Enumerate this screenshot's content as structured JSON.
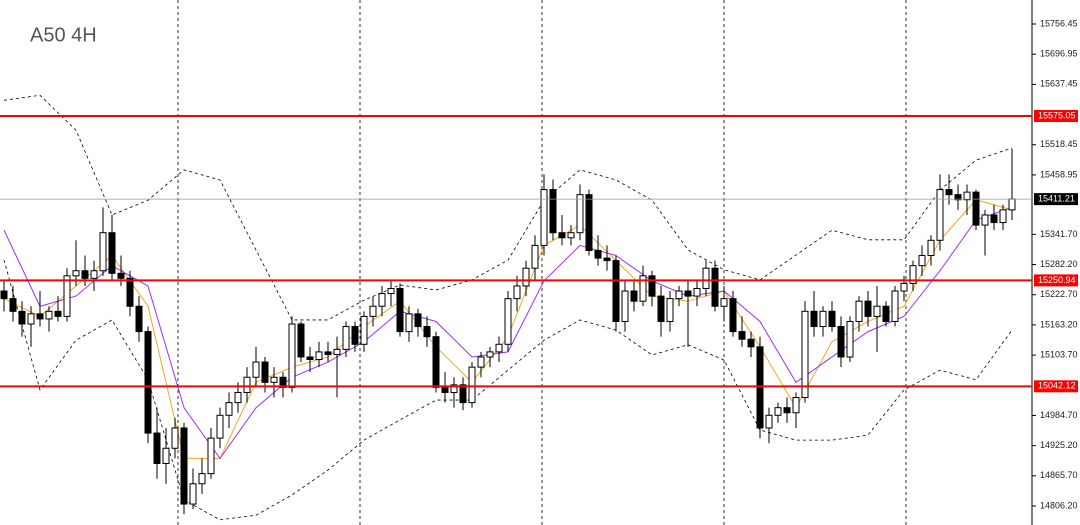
{
  "chart_data": {
    "type": "candlestick",
    "title": "A50 4H",
    "ylim": [
      14768.7,
      15803.8
    ],
    "yticks": [
      15756.45,
      15696.95,
      15637.45,
      15518.45,
      15458.95,
      {
        "value": 15341.7,
        "label": "15341.70"
      },
      {
        "value": 15282.2,
        "label": "15282.20"
      },
      {
        "value": 15222.7,
        "label": "15222.70"
      },
      {
        "value": 15163.2,
        "label": "15163.20"
      },
      {
        "value": 15103.7,
        "label": "15103.70"
      },
      {
        "value": 14984.7,
        "label": "14984.70"
      },
      {
        "value": 14925.2,
        "label": "14925.20"
      },
      {
        "value": 14865.7,
        "label": "14865.70"
      },
      {
        "value": 14806.2,
        "label": "14806.20"
      }
    ],
    "levels": [
      15575.05,
      15250.94,
      15042.12
    ],
    "level_color": "#ff0000",
    "last_price": 15411.21,
    "grid": true,
    "up_color": "#ffffff",
    "down_color": "#000000",
    "ohlc": [
      [
        15230,
        15250,
        15190,
        15215
      ],
      [
        15215,
        15240,
        15170,
        15190
      ],
      [
        15190,
        15210,
        15140,
        15165
      ],
      [
        15165,
        15200,
        15120,
        15185
      ],
      [
        15185,
        15230,
        15160,
        15175
      ],
      [
        15175,
        15200,
        15150,
        15190
      ],
      [
        15190,
        15220,
        15170,
        15180
      ],
      [
        15180,
        15275,
        15170,
        15260
      ],
      [
        15260,
        15330,
        15240,
        15270
      ],
      [
        15270,
        15300,
        15240,
        15255
      ],
      [
        15255,
        15290,
        15230,
        15270
      ],
      [
        15270,
        15395,
        15260,
        15345
      ],
      [
        15345,
        15380,
        15250,
        15265
      ],
      [
        15265,
        15300,
        15240,
        15255
      ],
      [
        15255,
        15270,
        15180,
        15200
      ],
      [
        15200,
        15220,
        15130,
        15150
      ],
      [
        15150,
        15160,
        14930,
        14950
      ],
      [
        14950,
        15000,
        14860,
        14890
      ],
      [
        14890,
        14960,
        14850,
        14920
      ],
      [
        14920,
        14980,
        14900,
        14960
      ],
      [
        14960,
        14970,
        14790,
        14810
      ],
      [
        14810,
        14880,
        14800,
        14850
      ],
      [
        14850,
        14900,
        14830,
        14870
      ],
      [
        14870,
        14960,
        14860,
        14940
      ],
      [
        14940,
        15000,
        14920,
        14985
      ],
      [
        14985,
        15030,
        14960,
        15010
      ],
      [
        15010,
        15050,
        14990,
        15030
      ],
      [
        15030,
        15080,
        15010,
        15060
      ],
      [
        15060,
        15120,
        15040,
        15090
      ],
      [
        15090,
        15100,
        15030,
        15050
      ],
      [
        15050,
        15080,
        15020,
        15060
      ],
      [
        15060,
        15070,
        15020,
        15040
      ],
      [
        15040,
        15180,
        15030,
        15165
      ],
      [
        15165,
        15170,
        15090,
        15100
      ],
      [
        15100,
        15120,
        15070,
        15095
      ],
      [
        15095,
        15130,
        15080,
        15110
      ],
      [
        15110,
        15130,
        15090,
        15105
      ],
      [
        15105,
        15140,
        15020,
        15115
      ],
      [
        15115,
        15170,
        15100,
        15160
      ],
      [
        15160,
        15170,
        15110,
        15125
      ],
      [
        15125,
        15190,
        15110,
        15180
      ],
      [
        15180,
        15220,
        15160,
        15200
      ],
      [
        15200,
        15240,
        15180,
        15225
      ],
      [
        15225,
        15250,
        15200,
        15235
      ],
      [
        15235,
        15245,
        15140,
        15150
      ],
      [
        15150,
        15200,
        15130,
        15185
      ],
      [
        15185,
        15195,
        15140,
        15160
      ],
      [
        15160,
        15180,
        15120,
        15140
      ],
      [
        15140,
        15150,
        15030,
        15040
      ],
      [
        15040,
        15070,
        15010,
        15030
      ],
      [
        15030,
        15060,
        15000,
        15045
      ],
      [
        15045,
        15060,
        14995,
        15010
      ],
      [
        15010,
        15090,
        15000,
        15080
      ],
      [
        15080,
        15110,
        15060,
        15100
      ],
      [
        15100,
        15120,
        15080,
        15110
      ],
      [
        15110,
        15140,
        15090,
        15125
      ],
      [
        15125,
        15230,
        15110,
        15215
      ],
      [
        15215,
        15260,
        15190,
        15240
      ],
      [
        15240,
        15290,
        15220,
        15275
      ],
      [
        15275,
        15340,
        15250,
        15320
      ],
      [
        15320,
        15460,
        15300,
        15430
      ],
      [
        15430,
        15450,
        15330,
        15345
      ],
      [
        15345,
        15380,
        15320,
        15335
      ],
      [
        15335,
        15360,
        15320,
        15345
      ],
      [
        15345,
        15440,
        15330,
        15420
      ],
      [
        15420,
        15430,
        15300,
        15310
      ],
      [
        15310,
        15340,
        15280,
        15295
      ],
      [
        15295,
        15320,
        15270,
        15290
      ],
      [
        15290,
        15300,
        15150,
        15170
      ],
      [
        15170,
        15250,
        15150,
        15230
      ],
      [
        15230,
        15250,
        15190,
        15210
      ],
      [
        15210,
        15280,
        15200,
        15260
      ],
      [
        15260,
        15270,
        15200,
        15220
      ],
      [
        15220,
        15240,
        15140,
        15170
      ],
      [
        15170,
        15230,
        15150,
        15215
      ],
      [
        15215,
        15240,
        15200,
        15230
      ],
      [
        15230,
        15250,
        15120,
        15220
      ],
      [
        15220,
        15250,
        15200,
        15235
      ],
      [
        15235,
        15290,
        15220,
        15275
      ],
      [
        15275,
        15290,
        15190,
        15200
      ],
      [
        15200,
        15240,
        15170,
        15215
      ],
      [
        15215,
        15230,
        15140,
        15150
      ],
      [
        15150,
        15180,
        15120,
        15135
      ],
      [
        15135,
        15150,
        15100,
        15120
      ],
      [
        15120,
        15140,
        14940,
        14960
      ],
      [
        14960,
        15000,
        14930,
        14985
      ],
      [
        14985,
        15010,
        14970,
        15000
      ],
      [
        15000,
        15020,
        14970,
        14990
      ],
      [
        14990,
        15030,
        14960,
        15020
      ],
      [
        15020,
        15210,
        15010,
        15190
      ],
      [
        15190,
        15230,
        15140,
        15160
      ],
      [
        15160,
        15200,
        15140,
        15190
      ],
      [
        15190,
        15210,
        15150,
        15160
      ],
      [
        15160,
        15180,
        15080,
        15100
      ],
      [
        15100,
        15180,
        15090,
        15170
      ],
      [
        15170,
        15220,
        15150,
        15210
      ],
      [
        15210,
        15230,
        15160,
        15180
      ],
      [
        15180,
        15240,
        15110,
        15200
      ],
      [
        15200,
        15210,
        15160,
        15170
      ],
      [
        15170,
        15240,
        15160,
        15230
      ],
      [
        15230,
        15260,
        15210,
        15245
      ],
      [
        15245,
        15290,
        15230,
        15280
      ],
      [
        15280,
        15320,
        15260,
        15300
      ],
      [
        15300,
        15340,
        15280,
        15330
      ],
      [
        15330,
        15460,
        15310,
        15430
      ],
      [
        15430,
        15460,
        15400,
        15420
      ],
      [
        15420,
        15440,
        15390,
        15410
      ],
      [
        15410,
        15440,
        15380,
        15425
      ],
      [
        15425,
        15430,
        15350,
        15360
      ],
      [
        15360,
        15390,
        15300,
        15380
      ],
      [
        15380,
        15400,
        15350,
        15365
      ],
      [
        15365,
        15400,
        15350,
        15390
      ],
      [
        15390,
        15510,
        15370,
        15411.21
      ]
    ],
    "indicators": {
      "x": [
        0,
        4,
        8,
        12,
        16,
        20,
        24,
        28,
        32,
        36,
        40,
        44,
        48,
        52,
        56,
        60,
        64,
        68,
        72,
        76,
        80,
        84,
        88,
        92,
        96,
        100,
        104,
        108,
        112
      ],
      "series": [
        {
          "color": "#000000",
          "dashed": true,
          "values": [
            15606,
            15616,
            15547,
            15380,
            15409,
            15469,
            15449,
            15311,
            15173,
            15173,
            15212,
            15242,
            15232,
            15252,
            15291,
            15409,
            15469,
            15449,
            15409,
            15311,
            15272,
            15252,
            15301,
            15350,
            15331,
            15331,
            15429,
            15488,
            15512
          ]
        },
        {
          "color": "#000000",
          "dashed": true,
          "values": [
            15291,
            15035,
            15133,
            15173,
            15055,
            14818,
            14779,
            14788,
            14828,
            14877,
            14936,
            14976,
            15015,
            15015,
            15074,
            15133,
            15173,
            15153,
            15104,
            15124,
            15094,
            14956,
            14936,
            14936,
            14946,
            15035,
            15074,
            15055,
            15153
          ]
        },
        {
          "color": "#f5a623",
          "dashed": false,
          "values": [
            15215,
            15180,
            15240,
            15300,
            15200,
            14900,
            14900,
            15050,
            15080,
            15100,
            15160,
            15210,
            15120,
            15050,
            15140,
            15320,
            15360,
            15290,
            15220,
            15210,
            15230,
            15120,
            15000,
            15130,
            15170,
            15200,
            15330,
            15410,
            15390
          ]
        },
        {
          "color": "#9b30ff",
          "dashed": false,
          "values": [
            15350,
            15200,
            15220,
            15280,
            15240,
            15000,
            14900,
            15000,
            15060,
            15090,
            15130,
            15190,
            15170,
            15100,
            15110,
            15250,
            15320,
            15300,
            15250,
            15220,
            15230,
            15170,
            15050,
            15100,
            15150,
            15180,
            15270,
            15370,
            15395
          ]
        }
      ]
    }
  }
}
